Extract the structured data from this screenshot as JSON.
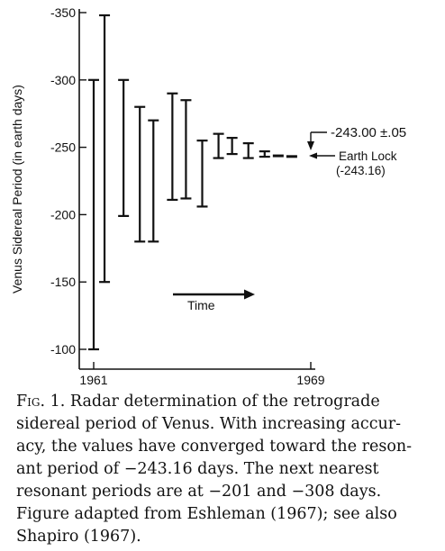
{
  "chart_data": {
    "type": "error-bar",
    "ylabel": "Venus Sidereal Period (in earth days)",
    "ylim": [
      -95,
      -352
    ],
    "yticks": [
      -350,
      -300,
      -250,
      -200,
      -150,
      -100
    ],
    "ytick_labels": [
      "-350",
      "-300",
      "-250",
      "-200",
      "-150",
      "-100"
    ],
    "xlim": [
      1961,
      1969
    ],
    "xticks": [
      1961,
      1969
    ],
    "xtick_labels": [
      "1961",
      "1969"
    ],
    "measurements": [
      {
        "x": 1961.0,
        "y_low": -100,
        "y_high": -300
      },
      {
        "x": 1961.4,
        "y_low": -150,
        "y_high": -348
      },
      {
        "x": 1962.1,
        "y_low": -199,
        "y_high": -300
      },
      {
        "x": 1962.7,
        "y_low": -180,
        "y_high": -280
      },
      {
        "x": 1963.2,
        "y_low": -180,
        "y_high": -270
      },
      {
        "x": 1963.9,
        "y_low": -211,
        "y_high": -290
      },
      {
        "x": 1964.4,
        "y_low": -212,
        "y_high": -285
      },
      {
        "x": 1965.0,
        "y_low": -206,
        "y_high": -255
      },
      {
        "x": 1965.6,
        "y_low": -242,
        "y_high": -260
      },
      {
        "x": 1966.1,
        "y_low": -245,
        "y_high": -257
      },
      {
        "x": 1966.7,
        "y_low": -242,
        "y_high": -253
      },
      {
        "x": 1967.3,
        "y_low": -243,
        "y_high": -247
      },
      {
        "x": 1967.8,
        "y_low": -242,
        "y_high": -244
      },
      {
        "x": 1968.3,
        "y_low": -242.5,
        "y_high": -243.5
      }
    ],
    "earth_lock_value": -243.16,
    "annotations": {
      "latest_value": "-243.00 ±.05",
      "earth_lock_line1": "Earth Lock",
      "earth_lock_line2": "(-243.16)",
      "time_label": "Time"
    }
  },
  "caption": {
    "figure_label": "Fig. 1.",
    "lines": [
      "Radar determination of the retrograde",
      "sidereal period of Venus. With increasing accur-",
      "acy, the values have converged toward the reson-",
      "ant period of −243.16 days. The next nearest",
      "resonant periods are at −201 and −308 days.",
      "Figure adapted from Eshleman (1967); see also",
      "Shapiro (1967)."
    ]
  }
}
